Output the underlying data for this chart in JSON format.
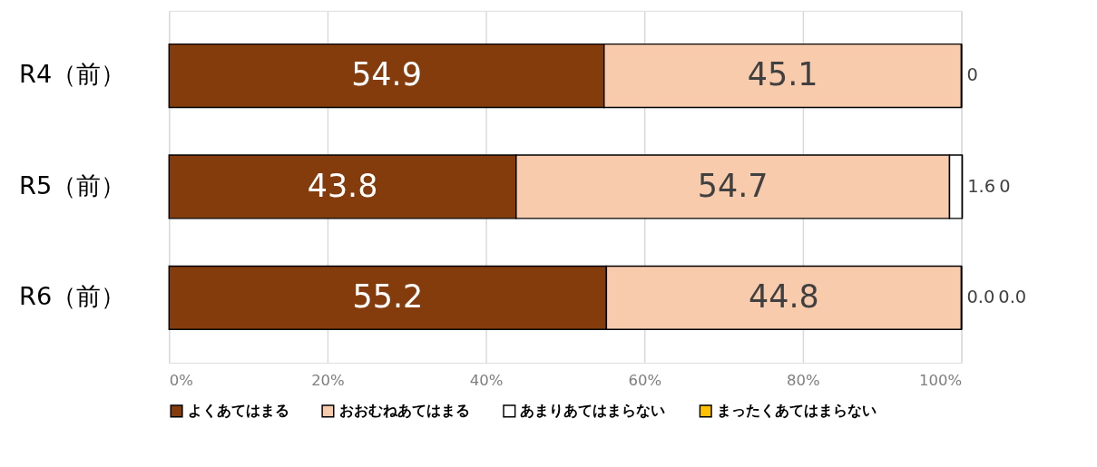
{
  "chart_data": {
    "type": "bar",
    "orientation": "horizontal",
    "stacked": true,
    "categories": [
      "R4（前）",
      "R5（前）",
      "R6（前）"
    ],
    "series": [
      {
        "name": "よくあてはまる",
        "color": "#843c0c",
        "values": [
          54.9,
          43.8,
          55.2
        ],
        "value_labels": [
          "54.9",
          "43.8",
          "55.2"
        ]
      },
      {
        "name": "おおむねあてはまる",
        "color": "#f8cbad",
        "values": [
          45.1,
          54.7,
          44.8
        ],
        "value_labels": [
          "45.1",
          "54.7",
          "44.8"
        ]
      },
      {
        "name": "あまりあてはまらない",
        "color": "#ffffff",
        "values": [
          0,
          1.6,
          0
        ],
        "value_labels": [
          "0",
          "1.6",
          "0.0"
        ]
      },
      {
        "name": "まったくあてはまらない",
        "color": "#ffc000",
        "values": [
          0,
          0,
          0
        ],
        "value_labels": [
          null,
          "0",
          "0.0"
        ]
      }
    ],
    "xlim": [
      0,
      100
    ],
    "xticks": [
      {
        "value": 0,
        "label": "0%"
      },
      {
        "value": 20,
        "label": "20%"
      },
      {
        "value": 40,
        "label": "40%"
      },
      {
        "value": 60,
        "label": "60%"
      },
      {
        "value": 80,
        "label": "80%"
      },
      {
        "value": 100,
        "label": "100%"
      }
    ],
    "grid": "x",
    "legend": "bottom"
  }
}
